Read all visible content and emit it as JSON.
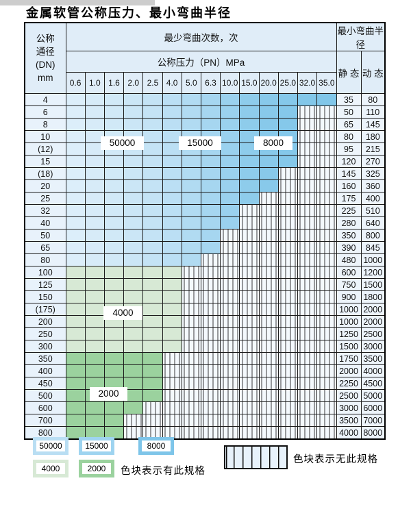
{
  "title": "金属软管公称压力、最小弯曲半径",
  "chart_data": {
    "type": "table",
    "title": "金属软管公称压力、最小弯曲半径",
    "header": {
      "dn_lines": [
        "公称",
        "通径",
        "(DN)",
        "mm"
      ],
      "cycles_title": "最少弯曲次数，次",
      "pressure_title": "公称压力（PN）MPa",
      "pressures": [
        "0.6",
        "1.0",
        "1.6",
        "2.0",
        "2.5",
        "4.0",
        "5.0",
        "6.3",
        "10.0",
        "15.0",
        "20.0",
        "25.0",
        "32.0",
        "35.0"
      ],
      "radius_title": "最小弯曲半径",
      "static_label": "静 态",
      "dynamic_label": "动 态"
    },
    "rows": [
      {
        "dn": "4",
        "band": "blue",
        "spec_through_mpa": "35.0",
        "static_radius": "35",
        "dynamic_radius": "80"
      },
      {
        "dn": "6",
        "band": "blue",
        "spec_through_mpa": "25.0",
        "static_radius": "50",
        "dynamic_radius": "110"
      },
      {
        "dn": "8",
        "band": "blue",
        "spec_through_mpa": "25.0",
        "static_radius": "65",
        "dynamic_radius": "145"
      },
      {
        "dn": "10",
        "band": "blue",
        "spec_through_mpa": "25.0",
        "static_radius": "80",
        "dynamic_radius": "180"
      },
      {
        "dn": "(12)",
        "band": "blue",
        "spec_through_mpa": "25.0",
        "static_radius": "95",
        "dynamic_radius": "215"
      },
      {
        "dn": "15",
        "band": "blue",
        "spec_through_mpa": "25.0",
        "static_radius": "120",
        "dynamic_radius": "270"
      },
      {
        "dn": "(18)",
        "band": "blue",
        "spec_through_mpa": "20.0",
        "static_radius": "145",
        "dynamic_radius": "325"
      },
      {
        "dn": "20",
        "band": "blue",
        "spec_through_mpa": "20.0",
        "static_radius": "160",
        "dynamic_radius": "360"
      },
      {
        "dn": "25",
        "band": "blue",
        "spec_through_mpa": "15.0",
        "static_radius": "175",
        "dynamic_radius": "400"
      },
      {
        "dn": "32",
        "band": "blue",
        "spec_through_mpa": "10.0",
        "static_radius": "225",
        "dynamic_radius": "510"
      },
      {
        "dn": "40",
        "band": "blue",
        "spec_through_mpa": "10.0",
        "static_radius": "280",
        "dynamic_radius": "640"
      },
      {
        "dn": "50",
        "band": "blue",
        "spec_through_mpa": "6.3",
        "static_radius": "350",
        "dynamic_radius": "800"
      },
      {
        "dn": "65",
        "band": "blue",
        "spec_through_mpa": "6.3",
        "static_radius": "390",
        "dynamic_radius": "845"
      },
      {
        "dn": "80",
        "band": "blue",
        "spec_through_mpa": "5.0",
        "static_radius": "480",
        "dynamic_radius": "1000"
      },
      {
        "dn": "100",
        "band": "green_light",
        "spec_through_mpa": "4.0",
        "static_radius": "600",
        "dynamic_radius": "1200"
      },
      {
        "dn": "125",
        "band": "green_light",
        "spec_through_mpa": "4.0",
        "static_radius": "750",
        "dynamic_radius": "1500"
      },
      {
        "dn": "150",
        "band": "green_light",
        "spec_through_mpa": "4.0",
        "static_radius": "900",
        "dynamic_radius": "1800"
      },
      {
        "dn": "(175)",
        "band": "green_light",
        "spec_through_mpa": "4.0",
        "static_radius": "1000",
        "dynamic_radius": "2000"
      },
      {
        "dn": "200",
        "band": "green_light",
        "spec_through_mpa": "4.0",
        "static_radius": "1000",
        "dynamic_radius": "2000"
      },
      {
        "dn": "250",
        "band": "green_light",
        "spec_through_mpa": "4.0",
        "static_radius": "1250",
        "dynamic_radius": "2500"
      },
      {
        "dn": "300",
        "band": "green_light",
        "spec_through_mpa": "4.0",
        "static_radius": "1500",
        "dynamic_radius": "3000"
      },
      {
        "dn": "350",
        "band": "green_dark",
        "spec_through_mpa": "2.5",
        "static_radius": "1750",
        "dynamic_radius": "3500"
      },
      {
        "dn": "400",
        "band": "green_dark",
        "spec_through_mpa": "2.5",
        "static_radius": "2000",
        "dynamic_radius": "4000"
      },
      {
        "dn": "450",
        "band": "green_dark",
        "spec_through_mpa": "2.5",
        "static_radius": "2250",
        "dynamic_radius": "4500"
      },
      {
        "dn": "500",
        "band": "green_dark",
        "spec_through_mpa": "2.5",
        "static_radius": "2500",
        "dynamic_radius": "5000"
      },
      {
        "dn": "600",
        "band": "green_dark",
        "spec_through_mpa": "2.0",
        "static_radius": "3000",
        "dynamic_radius": "6000"
      },
      {
        "dn": "700",
        "band": "green_dark",
        "spec_through_mpa": "1.6",
        "static_radius": "3500",
        "dynamic_radius": "7000"
      },
      {
        "dn": "800",
        "band": "green_dark",
        "spec_through_mpa": "1.6",
        "static_radius": "4000",
        "dynamic_radius": "8000"
      }
    ],
    "legend_labels": [
      "50000",
      "15000",
      "8000",
      "4000",
      "2000"
    ],
    "notes": {
      "has_spec": "色块表示有此规格",
      "no_spec": "色块表示无此规格"
    },
    "cycle_band_regions": [
      {
        "cycles": "50000",
        "description": "lightest blue columns (0.6–2.5 MPa) of DN 4–80 rows"
      },
      {
        "cycles": "15000",
        "description": "medium blue columns (4.0–10.0 MPa) of DN 4–80 rows"
      },
      {
        "cycles": "8000",
        "description": "dark blue columns (15.0–35.0 MPa) of DN 4–80 rows"
      },
      {
        "cycles": "4000",
        "description": "light green cells, DN 100–300 up to 4.0 MPa"
      },
      {
        "cycles": "2000",
        "description": "dark green cells, DN 350–800 up to 2.5 MPa"
      },
      {
        "cycles": "无此规格",
        "description": "white cells with vertical hatching"
      }
    ]
  },
  "colors": {
    "blue_columns": [
      "#dceefa",
      "#d7ebf8",
      "#d1e9f7",
      "#cbe6f6",
      "#c4e3f5",
      "#bbdff4",
      "#b1dbf2",
      "#a6d6f0",
      "#9ad1ee",
      "#8ecceb",
      "#88c9ea",
      "#85c8ea",
      "#82c7e9",
      "#80c6e9"
    ],
    "green_light": "#d7e9d5",
    "green_dark": "#9bd29e",
    "hatch_bg": "#f4f9fd",
    "header_bg": "#e0edf8",
    "row_label_bg": "#e8f2fb",
    "value_bg": "#edf4fb",
    "grid": "#1c1c1c",
    "swatch_borders": [
      "#b9def3",
      "#9ed4f0",
      "#7ec5e9",
      "#d7e9d5",
      "#9bd29e"
    ]
  }
}
